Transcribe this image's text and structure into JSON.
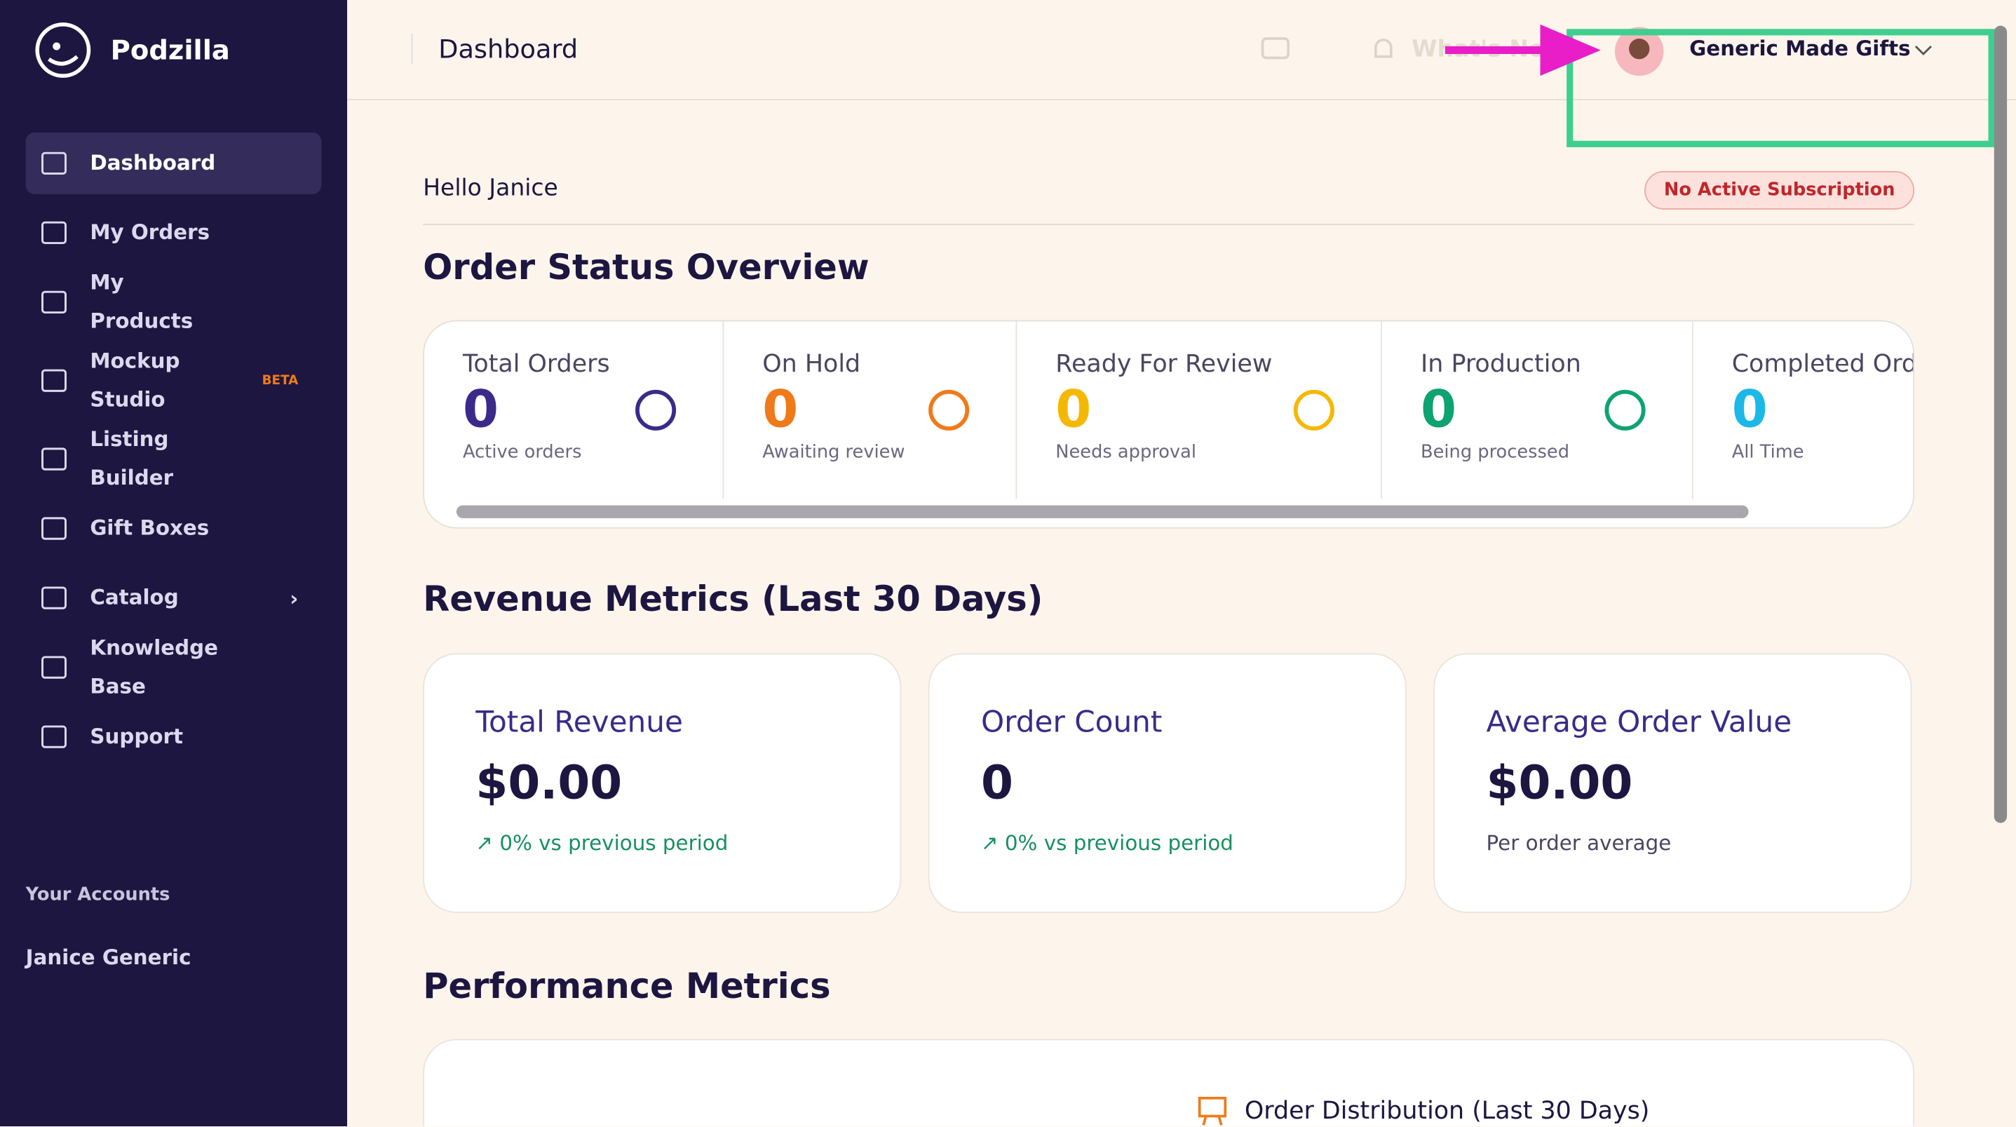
{
  "sidebar": {
    "brand": "Podzilla",
    "nav": [
      {
        "label": "Dashboard"
      },
      {
        "label": "My Orders"
      },
      {
        "label": "My Products"
      },
      {
        "label": "Mockup Studio",
        "badge": "BETA"
      },
      {
        "label": "Listing Builder"
      },
      {
        "label": "Gift Boxes"
      },
      {
        "label": "Catalog"
      },
      {
        "label": "Knowledge Base"
      },
      {
        "label": "Support"
      }
    ],
    "accounts_heading": "Your Accounts",
    "account": "Janice Generic"
  },
  "header": {
    "title": "Dashboard",
    "whats_new": "What's New",
    "account": "Generic Made Gifts"
  },
  "greeting": "Hello Janice",
  "subscription_badge": "No Active Subscription",
  "order_status": {
    "title": "Order Status Overview",
    "cards": [
      {
        "label": "Total Orders",
        "count": "0",
        "sub": "Active orders"
      },
      {
        "label": "On Hold",
        "count": "0",
        "sub": "Awaiting review"
      },
      {
        "label": "Ready For Review",
        "count": "0",
        "sub": "Needs approval"
      },
      {
        "label": "In Production",
        "count": "0",
        "sub": "Being processed"
      },
      {
        "label": "Completed Orders",
        "count": "0",
        "sub": "All Time"
      }
    ]
  },
  "revenue": {
    "title": "Revenue Metrics (Last 30 Days)",
    "cards": [
      {
        "title": "Total Revenue",
        "value": "$0.00",
        "note": "0% vs previous period"
      },
      {
        "title": "Order Count",
        "value": "0",
        "note": "0% vs previous period"
      },
      {
        "title": "Average Order Value",
        "value": "$0.00",
        "note": "Per order average"
      }
    ]
  },
  "performance": {
    "title": "Performance Metrics",
    "chart_title": "Order Distribution (Last 30 Days)"
  }
}
